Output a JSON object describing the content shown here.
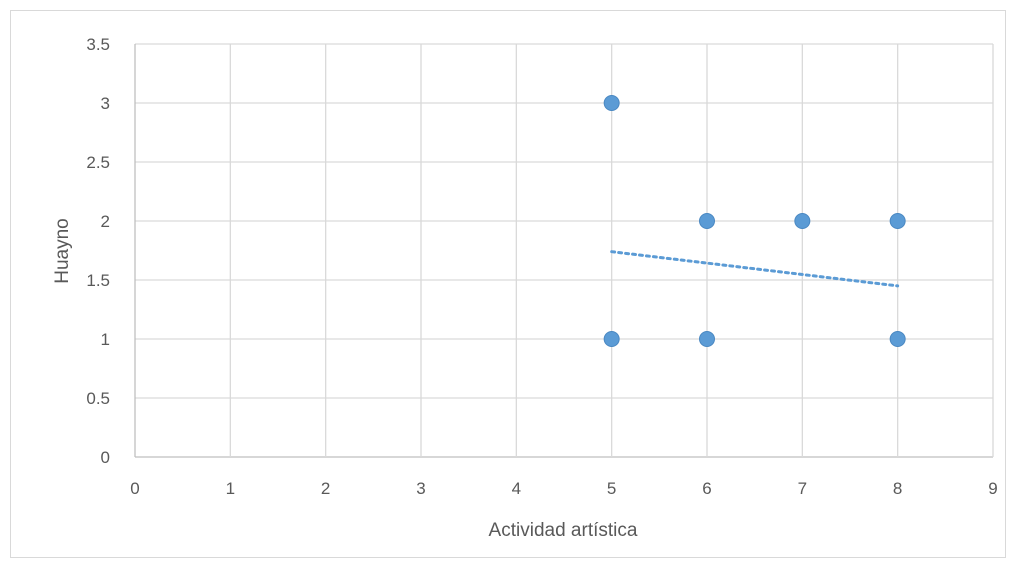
{
  "chart_data": {
    "type": "scatter",
    "xlabel": "Actividad artística",
    "ylabel": "Huayno",
    "xlim": [
      0,
      9
    ],
    "ylim": [
      0,
      3.5
    ],
    "xticks": [
      "0",
      "1",
      "2",
      "3",
      "4",
      "5",
      "6",
      "7",
      "8",
      "9"
    ],
    "yticks": [
      "0",
      "0.5",
      "1",
      "1.5",
      "2",
      "2.5",
      "3",
      "3.5"
    ],
    "grid": true,
    "series": [
      {
        "points": [
          {
            "x": 5,
            "y": 3
          },
          {
            "x": 5,
            "y": 1
          },
          {
            "x": 6,
            "y": 2
          },
          {
            "x": 6,
            "y": 1
          },
          {
            "x": 7,
            "y": 2
          },
          {
            "x": 8,
            "y": 2
          },
          {
            "x": 8,
            "y": 1
          }
        ],
        "color": "#5b9bd5"
      }
    ],
    "trendline": {
      "type": "linear",
      "style": "dotted",
      "color": "#5b9bd5",
      "from": {
        "x": 5,
        "y": 1.74
      },
      "to": {
        "x": 8,
        "y": 1.45
      }
    }
  }
}
